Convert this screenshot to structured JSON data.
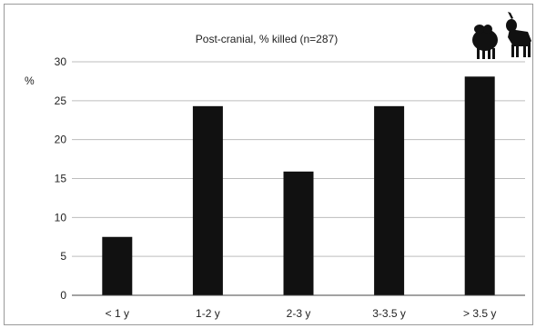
{
  "chart_data": {
    "type": "bar",
    "title": "Post-cranial, % killed (n=287)",
    "ylabel": "%",
    "xlabel": "",
    "categories": [
      "< 1 y",
      "1-2 y",
      "2-3 y",
      "3-3.5 y",
      "> 3.5 y"
    ],
    "values": [
      7.5,
      24.3,
      15.9,
      24.3,
      28.1
    ],
    "ylim": [
      0,
      30
    ],
    "yticks": [
      0,
      5,
      10,
      15,
      20,
      25,
      30
    ],
    "grid": true,
    "bar_color": "#111111",
    "grid_color": "#bdbdbd",
    "icons": [
      "sheep-icon",
      "goat-icon"
    ]
  }
}
